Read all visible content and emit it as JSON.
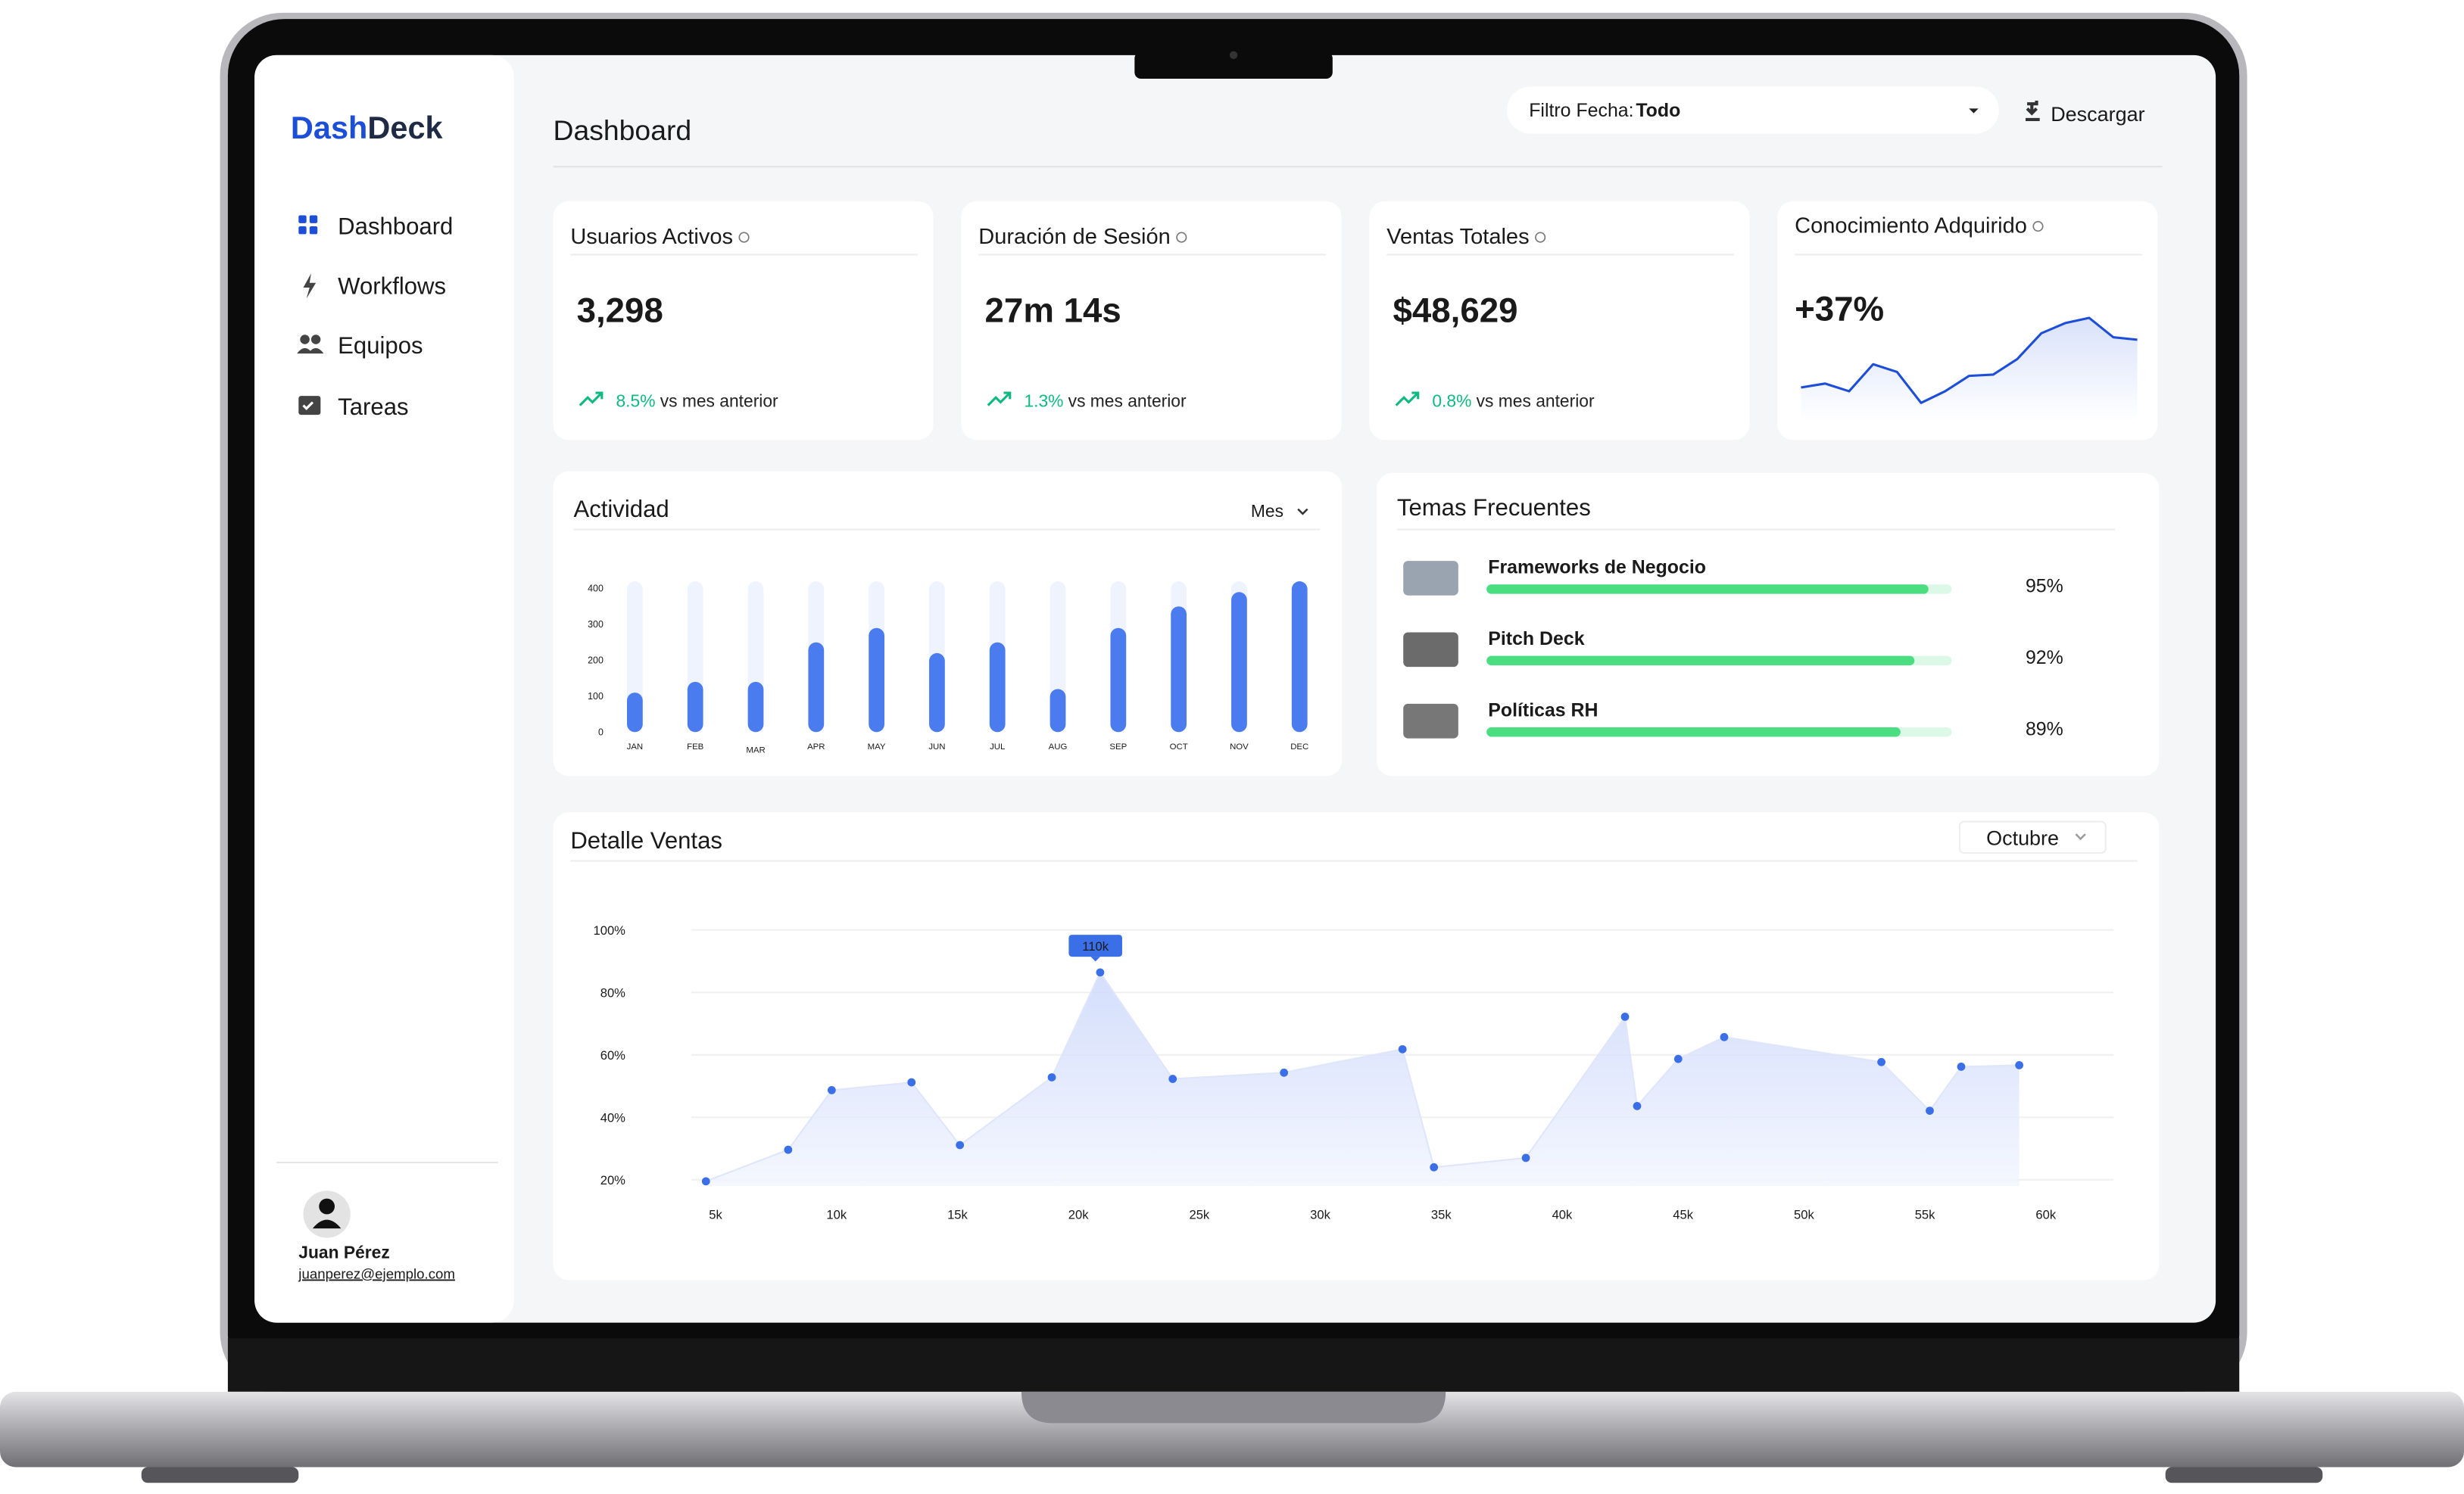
{
  "brand": {
    "part1": "Dash",
    "part2": "Deck"
  },
  "sidebar": {
    "nav": [
      "Dashboard",
      "Workflows",
      "Equipos",
      "Tareas"
    ],
    "user": {
      "name": "Juan Pérez",
      "email": "juanperez@ejemplo.com"
    }
  },
  "header": {
    "title": "Dashboard",
    "filter_label": "Filtro Fecha:",
    "filter_value": "Todo",
    "download": "Descargar"
  },
  "kpis": [
    {
      "title": "Usuarios Activos",
      "value": "3,298",
      "change": "8.5%",
      "change_note": "vs mes anterior"
    },
    {
      "title": "Duración de Sesión",
      "value": "27m 14s",
      "change": "1.3%",
      "change_note": "vs mes anterior"
    },
    {
      "title": "Ventas Totales",
      "value": "$48,629",
      "change": "0.8%",
      "change_note": "vs mes anterior"
    },
    {
      "title": "Conocimiento Adquirido",
      "value": "+37%",
      "sparkline": [
        31,
        34,
        28,
        49,
        43,
        19,
        28,
        40,
        41,
        53,
        73,
        81,
        85,
        70,
        68
      ]
    }
  ],
  "topics": {
    "title": "Temas Frecuentes",
    "items": [
      {
        "name": "Frameworks de Negocio",
        "value": 95,
        "value_label": "95%"
      },
      {
        "name": "Pitch Deck",
        "value": 92,
        "value_label": "92%"
      },
      {
        "name": "Políticas RH",
        "value": 89,
        "value_label": "89%"
      }
    ]
  },
  "chart_data": [
    {
      "type": "bar",
      "title": "Actividad",
      "control": "Mes",
      "categories": [
        "JAN",
        "FEB",
        "MAR",
        "APR",
        "MAY",
        "JUN",
        "JUL",
        "AUG",
        "SEP",
        "OCT",
        "NOV",
        "DEC"
      ],
      "values": [
        110,
        140,
        140,
        250,
        290,
        220,
        250,
        120,
        290,
        350,
        390,
        420
      ],
      "ylim": [
        0,
        420
      ],
      "yticks": [
        0,
        100,
        200,
        300,
        400
      ],
      "color": "#4a7cf0"
    },
    {
      "type": "area",
      "title": "Detalle Ventas",
      "control": "Octubre",
      "annotation": "110k",
      "x": [
        4600,
        8000,
        9800,
        13100,
        15100,
        18900,
        20900,
        23900,
        28500,
        33400,
        34700,
        38500,
        42600,
        43100,
        44800,
        46700,
        53200,
        55200,
        56500,
        58900
      ],
      "values": [
        19.5,
        29.6,
        48.7,
        51.2,
        31.1,
        52.8,
        86.4,
        52.3,
        54.3,
        61.8,
        24,
        27,
        72.2,
        43.6,
        58.7,
        65.7,
        57.7,
        42.1,
        56.2,
        56.7
      ],
      "xlim": [
        4000,
        62800
      ],
      "ylim": [
        18,
        100
      ],
      "xticks": [
        {
          "value": 5000,
          "label": "5k"
        },
        {
          "value": 10000,
          "label": "10k"
        },
        {
          "value": 15000,
          "label": "15k"
        },
        {
          "value": 20000,
          "label": "20k"
        },
        {
          "value": 25000,
          "label": "25k"
        },
        {
          "value": 30000,
          "label": "30k"
        },
        {
          "value": 35000,
          "label": "35k"
        },
        {
          "value": 40000,
          "label": "40k"
        },
        {
          "value": 45000,
          "label": "45k"
        },
        {
          "value": 50000,
          "label": "50k"
        },
        {
          "value": 55000,
          "label": "55k"
        },
        {
          "value": 60000,
          "label": "60k"
        }
      ],
      "yticks": [
        {
          "value": 20,
          "label": "20%"
        },
        {
          "value": 40,
          "label": "40%"
        },
        {
          "value": 60,
          "label": "60%"
        },
        {
          "value": 80,
          "label": "80%"
        },
        {
          "value": 100,
          "label": "100%"
        }
      ],
      "color": "#3b6fe8",
      "grid": true
    }
  ]
}
